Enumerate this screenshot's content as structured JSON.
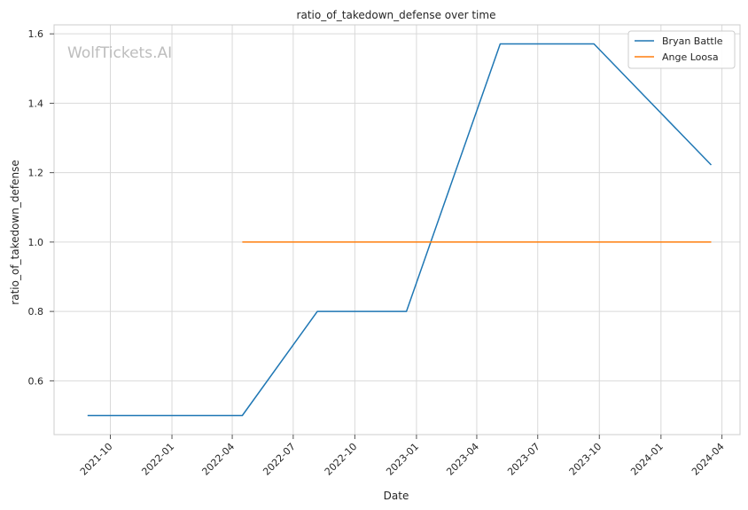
{
  "watermark": "WolfTickets.AI",
  "chart_data": {
    "type": "line",
    "title": "ratio_of_takedown_defense over time",
    "xlabel": "Date",
    "ylabel": "ratio_of_takedown_defense",
    "xlim": [
      "2021-07-09",
      "2024-04-28"
    ],
    "ylim": [
      0.445,
      1.626
    ],
    "x_ticks": [
      "2021-10",
      "2022-01",
      "2022-04",
      "2022-07",
      "2022-10",
      "2023-01",
      "2023-04",
      "2023-07",
      "2023-10",
      "2024-01",
      "2024-04"
    ],
    "y_ticks": [
      0.6,
      0.8,
      1.0,
      1.2,
      1.4,
      1.6
    ],
    "y_tick_labels": [
      "0.6",
      "0.8",
      "1.0",
      "1.2",
      "1.4",
      "1.6"
    ],
    "grid": true,
    "legend_position": "top-right",
    "series": [
      {
        "name": "Bryan Battle",
        "color": "#1f77b4",
        "x": [
          "2021-08-28",
          "2022-04-16",
          "2022-08-06",
          "2022-12-17",
          "2023-05-06",
          "2023-09-23",
          "2024-03-16"
        ],
        "y": [
          0.5,
          0.5,
          0.8,
          0.8,
          1.571,
          1.571,
          1.222
        ]
      },
      {
        "name": "Ange Loosa",
        "color": "#ff7f0e",
        "x": [
          "2022-04-16",
          "2024-03-16"
        ],
        "y": [
          1.0,
          1.0
        ]
      }
    ]
  }
}
